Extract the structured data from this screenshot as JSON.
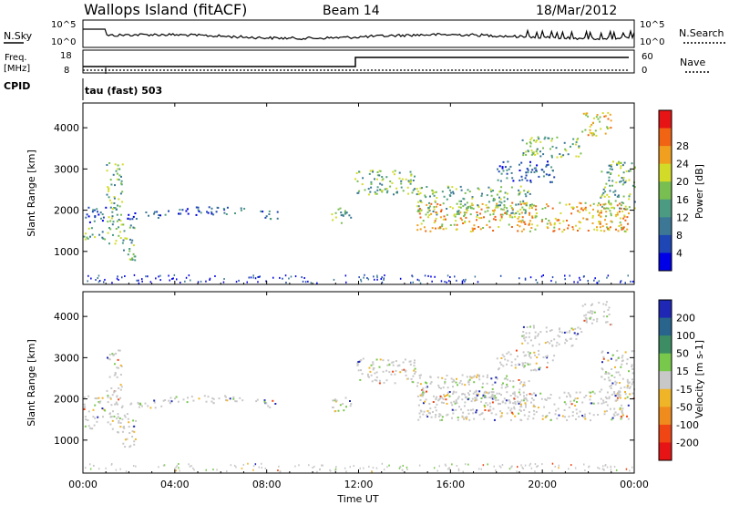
{
  "header": {
    "station": "Wallops Island (fitACF)",
    "beam": "Beam 14",
    "date": "18/Mar/2012"
  },
  "noise_panel": {
    "left_label": "N.Sky",
    "right_label": "N.Search",
    "ticks_left": [
      "10^5",
      "10^0"
    ],
    "ticks_right": [
      "10^5",
      "10^0"
    ]
  },
  "freq_panel": {
    "left_label_1": "Freq.",
    "left_label_2": "[MHz]",
    "left_ticks": [
      "18",
      "8"
    ],
    "right_label": "Nave",
    "right_ticks": [
      "60",
      "0"
    ],
    "cpid_label": "CPID",
    "cpid_text": "tau (fast) 503"
  },
  "chart_data": [
    {
      "type": "heatmap",
      "panel": "power",
      "ylabel": "Slant Range [km]",
      "y_ticks": [
        "1000",
        "2000",
        "3000",
        "4000"
      ],
      "ylim": [
        200,
        4600
      ],
      "xlim_hours": [
        0,
        24
      ],
      "colorbar_label": "Power [dB]",
      "colorbar_ticks": [
        "4",
        "8",
        "12",
        "16",
        "20",
        "24",
        "28"
      ],
      "colors": [
        "#0000e6",
        "#1e46b4",
        "#3c7896",
        "#4b9b82",
        "#78be50",
        "#d2dc28",
        "#f0a01e",
        "#f06414",
        "#e61414"
      ]
    },
    {
      "type": "heatmap",
      "panel": "velocity",
      "ylabel": "Slant Range [km]",
      "y_ticks": [
        "1000",
        "2000",
        "3000",
        "4000"
      ],
      "ylim": [
        200,
        4600
      ],
      "xlim_hours": [
        0,
        24
      ],
      "colorbar_label": "Velocity [m s-1]",
      "colorbar_ticks": [
        "200",
        "100",
        "50",
        "15",
        "-15",
        "-50",
        "-100",
        "-200"
      ],
      "colors": [
        "#1e28b4",
        "#28648c",
        "#3c8c64",
        "#78c84b",
        "#c8c8c8",
        "#f0b428",
        "#f08c1e",
        "#f04614",
        "#e61414"
      ]
    }
  ],
  "x_axis": {
    "ticks": [
      "00:00",
      "04:00",
      "08:00",
      "12:00",
      "16:00",
      "20:00",
      "00:00"
    ],
    "label": "Time UT"
  }
}
